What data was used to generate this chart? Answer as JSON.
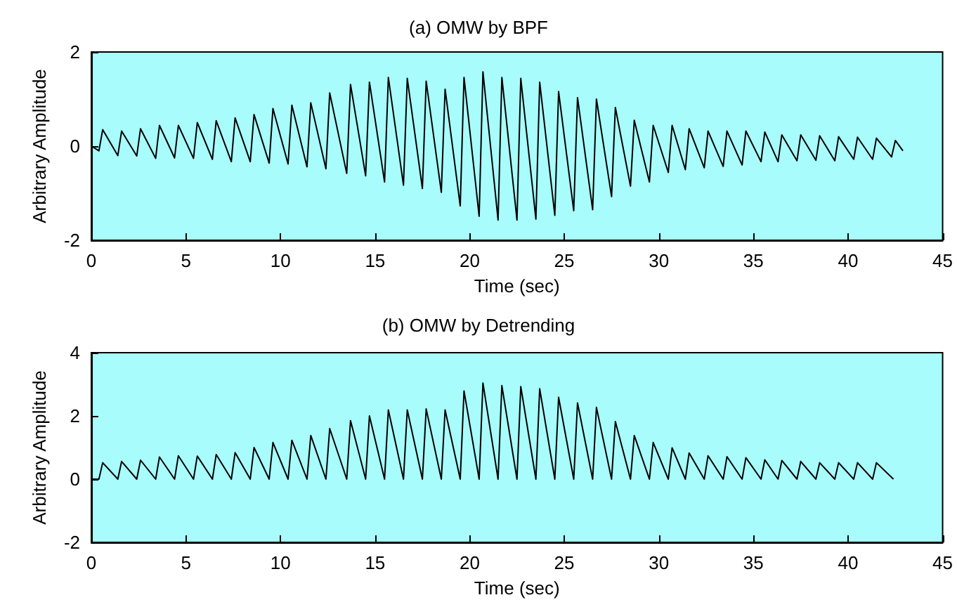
{
  "chart_data": [
    {
      "type": "line",
      "title": "(a) OMW by BPF",
      "xlabel": "Time (sec)",
      "ylabel": "Arbitrary Amplitude",
      "xlim": [
        0,
        45
      ],
      "xticks": [
        0,
        5,
        10,
        15,
        20,
        25,
        30,
        35,
        40,
        45
      ],
      "ylim": [
        -2,
        2
      ],
      "yticks": [
        -2,
        0,
        2
      ],
      "grid": false,
      "marker": "none",
      "series": [
        {
          "color": "#000000",
          "x": [
            0,
            0.4,
            0.6,
            1.4,
            1.6,
            2.4,
            2.6,
            3.4,
            3.6,
            4.4,
            4.6,
            5.4,
            5.6,
            6.4,
            6.6,
            7.4,
            7.6,
            8.4,
            8.6,
            9.4,
            9.6,
            10.4,
            10.6,
            11.4,
            11.6,
            12.4,
            12.6,
            13.5,
            13.7,
            14.5,
            14.7,
            15.5,
            15.7,
            16.5,
            16.7,
            17.5,
            17.7,
            18.5,
            18.7,
            19.5,
            19.7,
            20.5,
            20.7,
            21.5,
            21.7,
            22.5,
            22.7,
            23.5,
            23.7,
            24.5,
            24.7,
            25.5,
            25.7,
            26.5,
            26.7,
            27.5,
            27.7,
            28.5,
            28.7,
            29.5,
            29.7,
            30.5,
            30.7,
            31.4,
            31.6,
            32.4,
            32.6,
            33.4,
            33.6,
            34.4,
            34.6,
            35.4,
            35.6,
            36.3,
            36.5,
            37.3,
            37.5,
            38.3,
            38.5,
            39.3,
            39.5,
            40.3,
            40.5,
            41.3,
            41.5,
            42.3,
            42.5,
            42.9
          ],
          "values": [
            0,
            -0.1,
            0.35,
            -0.2,
            0.32,
            -0.21,
            0.37,
            -0.26,
            0.44,
            -0.25,
            0.44,
            -0.26,
            0.5,
            -0.28,
            0.54,
            -0.33,
            0.6,
            -0.33,
            0.67,
            -0.36,
            0.8,
            -0.38,
            0.87,
            -0.44,
            0.92,
            -0.48,
            1.13,
            -0.58,
            1.31,
            -0.63,
            1.36,
            -0.76,
            1.46,
            -0.83,
            1.44,
            -0.9,
            1.38,
            -0.98,
            1.21,
            -1.27,
            1.46,
            -1.49,
            1.58,
            -1.57,
            1.46,
            -1.57,
            1.44,
            -1.55,
            1.36,
            -1.47,
            1.16,
            -1.37,
            1.03,
            -1.35,
            1.0,
            -1.07,
            0.82,
            -0.85,
            0.55,
            -0.76,
            0.44,
            -0.56,
            0.44,
            -0.5,
            0.37,
            -0.46,
            0.32,
            -0.43,
            0.32,
            -0.4,
            0.32,
            -0.33,
            0.3,
            -0.33,
            0.24,
            -0.31,
            0.24,
            -0.3,
            0.22,
            -0.31,
            0.2,
            -0.28,
            0.19,
            -0.28,
            0.17,
            -0.23,
            0.12,
            -0.1
          ]
        }
      ]
    },
    {
      "type": "line",
      "title": "(b) OMW by Detrending",
      "xlabel": "Time (sec)",
      "ylabel": "Arbitrary Amplitude",
      "xlim": [
        0,
        45
      ],
      "xticks": [
        0,
        5,
        10,
        15,
        20,
        25,
        30,
        35,
        40,
        45
      ],
      "ylim": [
        -2,
        4
      ],
      "yticks": [
        -2,
        0,
        2,
        4
      ],
      "grid": false,
      "marker": "none",
      "series": [
        {
          "color": "#000000",
          "x": [
            0,
            0.4,
            0.6,
            1.4,
            1.6,
            2.4,
            2.6,
            3.4,
            3.6,
            4.4,
            4.6,
            5.4,
            5.6,
            6.4,
            6.6,
            7.4,
            7.6,
            8.4,
            8.6,
            9.4,
            9.6,
            10.4,
            10.6,
            11.4,
            11.6,
            12.4,
            12.6,
            13.5,
            13.7,
            14.5,
            14.7,
            15.5,
            15.7,
            16.5,
            16.7,
            17.5,
            17.7,
            18.5,
            18.7,
            19.5,
            19.7,
            20.5,
            20.7,
            21.5,
            21.7,
            22.5,
            22.7,
            23.5,
            23.7,
            24.5,
            24.7,
            25.5,
            25.7,
            26.5,
            26.7,
            27.5,
            27.7,
            28.5,
            28.7,
            29.5,
            29.7,
            30.5,
            30.7,
            31.4,
            31.6,
            32.4,
            32.6,
            33.4,
            33.6,
            34.4,
            34.6,
            35.4,
            35.6,
            36.3,
            36.5,
            37.3,
            37.5,
            38.3,
            38.5,
            39.3,
            39.5,
            40.3,
            40.5,
            41.3,
            41.5,
            42.4
          ],
          "values": [
            0,
            0,
            0.52,
            0,
            0.56,
            0,
            0.6,
            0,
            0.7,
            0,
            0.74,
            0,
            0.73,
            0,
            0.78,
            0,
            0.84,
            0,
            1.0,
            0,
            1.16,
            0,
            1.23,
            0,
            1.38,
            0,
            1.6,
            0,
            1.85,
            0,
            2.0,
            0,
            2.19,
            0,
            2.19,
            0,
            2.22,
            0,
            2.19,
            0,
            2.79,
            0,
            3.04,
            0,
            2.96,
            0,
            2.93,
            0,
            2.86,
            0,
            2.59,
            0,
            2.41,
            0,
            2.27,
            0,
            1.82,
            0,
            1.38,
            0,
            1.16,
            0,
            0.99,
            0,
            0.83,
            0,
            0.74,
            0,
            0.71,
            0,
            0.68,
            0,
            0.61,
            0,
            0.59,
            0,
            0.56,
            0,
            0.52,
            0,
            0.52,
            0,
            0.52,
            0,
            0.52,
            0
          ]
        }
      ]
    }
  ]
}
